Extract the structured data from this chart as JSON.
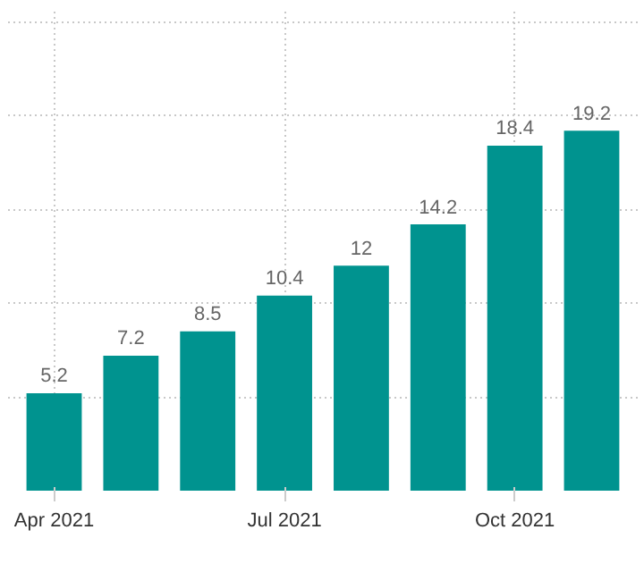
{
  "chart_data": {
    "type": "bar",
    "categories": [
      "Apr 2021",
      null,
      null,
      "Jul 2021",
      null,
      null,
      "Oct 2021",
      null
    ],
    "values": [
      5.2,
      7.2,
      8.5,
      10.4,
      12,
      14.2,
      18.4,
      19.2
    ],
    "color": "#00938f",
    "tick_labels": "x",
    "grid": true,
    "data_labels": true
  }
}
